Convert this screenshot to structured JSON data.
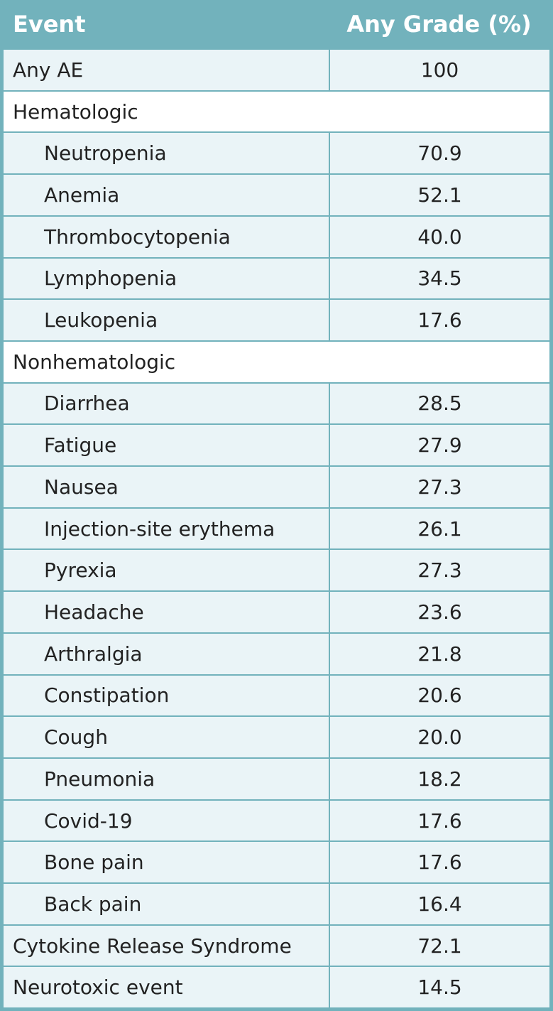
{
  "table": {
    "header": [
      "Event",
      "Any Grade (%)"
    ],
    "rows": [
      {
        "event": "Any AE",
        "value": "100"
      },
      {
        "section": "Hematologic",
        "items": [
          {
            "event": "Neutropenia",
            "value": "70.9"
          },
          {
            "event": "Anemia",
            "value": "52.1"
          },
          {
            "event": "Thrombocytopenia",
            "value": "40.0"
          },
          {
            "event": "Lymphopenia",
            "value": "34.5"
          },
          {
            "event": "Leukopenia",
            "value": "17.6"
          }
        ]
      },
      {
        "section": "Nonhematologic",
        "items": [
          {
            "event": "Diarrhea",
            "value": "28.5"
          },
          {
            "event": "Fatigue",
            "value": "27.9"
          },
          {
            "event": "Nausea",
            "value": "27.3"
          },
          {
            "event": "Injection-site erythema",
            "value": "26.1"
          },
          {
            "event": "Pyrexia",
            "value": "27.3"
          },
          {
            "event": "Headache",
            "value": "23.6"
          },
          {
            "event": "Arthralgia",
            "value": "21.8"
          },
          {
            "event": "Constipation",
            "value": "20.6"
          },
          {
            "event": "Cough",
            "value": "20.0"
          },
          {
            "event": "Pneumonia",
            "value": "18.2"
          },
          {
            "event": "Covid-19",
            "value": "17.6"
          },
          {
            "event": "Bone pain",
            "value": "17.6"
          },
          {
            "event": "Back pain",
            "value": "16.4"
          }
        ]
      },
      {
        "event": "Cytokine Release Syndrome",
        "value": "72.1"
      },
      {
        "event": "Neurotoxic event",
        "value": "14.5"
      }
    ]
  }
}
